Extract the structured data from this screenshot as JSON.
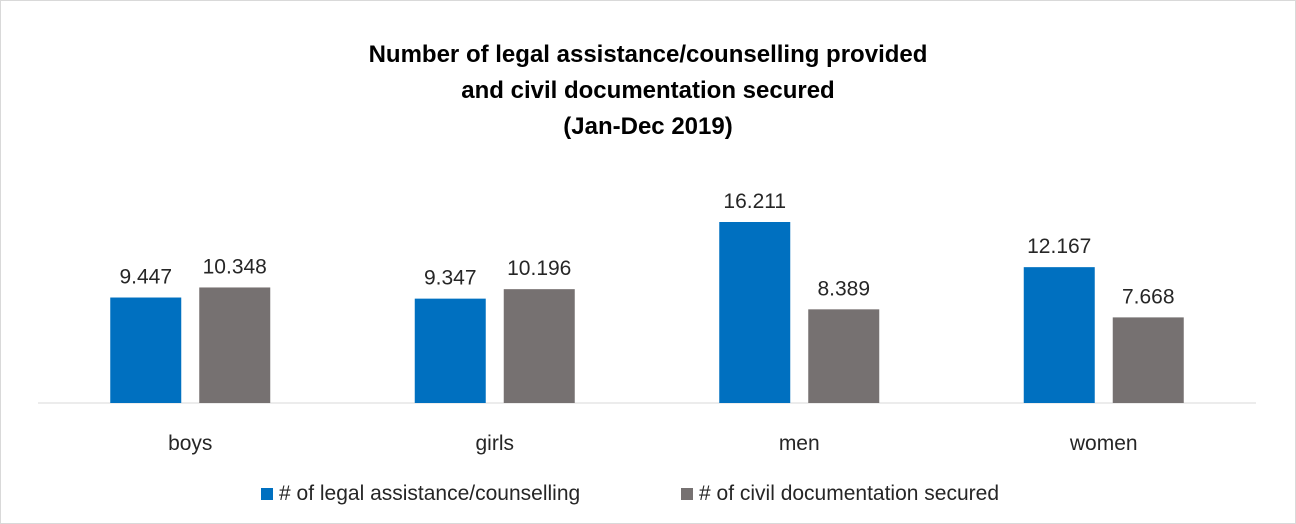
{
  "chart_data": {
    "type": "bar",
    "title_lines": [
      "Number of legal assistance/counselling provided",
      "and civil documentation secured",
      "(Jan-Dec 2019)"
    ],
    "categories": [
      "boys",
      "girls",
      "men",
      "women"
    ],
    "series": [
      {
        "name": "# of legal assistance/counselling",
        "color": "#0070C0",
        "values": [
          9447,
          9347,
          16211,
          12167
        ],
        "labels": [
          "9.447",
          "9.347",
          "16.211",
          "12.167"
        ]
      },
      {
        "name": "# of civil documentation secured",
        "color": "#767171",
        "values": [
          10348,
          10196,
          8389,
          7668
        ],
        "labels": [
          "10.348",
          "10.196",
          "8.389",
          "7.668"
        ]
      }
    ],
    "ylim": [
      0,
      18000
    ],
    "y_axis_visible": false,
    "grid": false,
    "legend_position": "bottom"
  }
}
